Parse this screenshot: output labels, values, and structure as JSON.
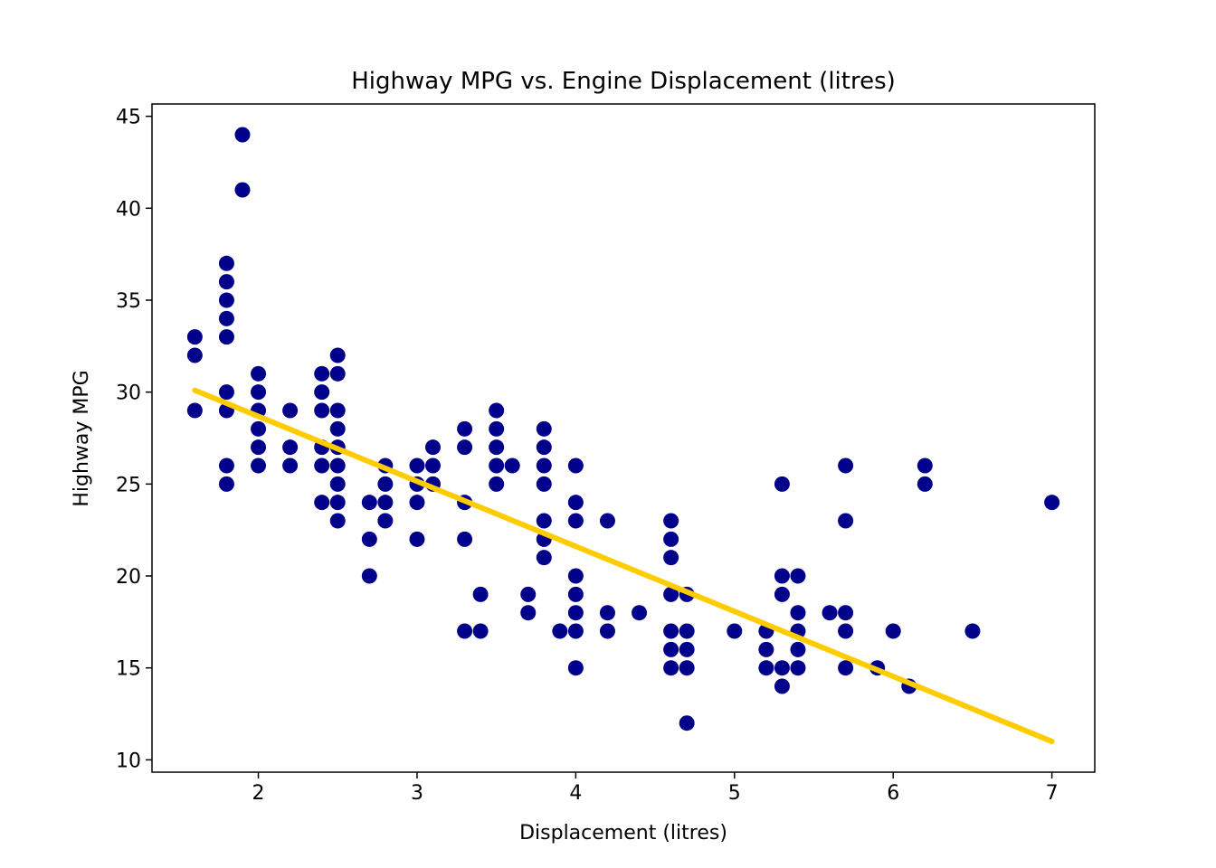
{
  "chart_data": {
    "type": "scatter",
    "title": "Highway MPG vs. Engine Displacement (litres)",
    "xlabel": "Displacement (litres)",
    "ylabel": "Highway MPG",
    "xlim": [
      1.33,
      7.27
    ],
    "ylim": [
      9.33,
      45.67
    ],
    "xticks": [
      2,
      3,
      4,
      5,
      6,
      7
    ],
    "yticks": [
      10,
      15,
      20,
      25,
      30,
      35,
      40,
      45
    ],
    "grid": false,
    "colors": {
      "points": "#00008b",
      "fit_line": "#ffcc00"
    },
    "series": [
      {
        "kind": "points",
        "points": [
          [
            1.6,
            33
          ],
          [
            1.6,
            32
          ],
          [
            1.6,
            29
          ],
          [
            1.8,
            37
          ],
          [
            1.8,
            36
          ],
          [
            1.8,
            35
          ],
          [
            1.8,
            34
          ],
          [
            1.8,
            33
          ],
          [
            1.8,
            30
          ],
          [
            1.8,
            29
          ],
          [
            1.8,
            26
          ],
          [
            1.8,
            25
          ],
          [
            1.9,
            44
          ],
          [
            1.9,
            41
          ],
          [
            2.0,
            31
          ],
          [
            2.0,
            30
          ],
          [
            2.0,
            29
          ],
          [
            2.0,
            28
          ],
          [
            2.0,
            27
          ],
          [
            2.0,
            26
          ],
          [
            2.2,
            29
          ],
          [
            2.2,
            27
          ],
          [
            2.2,
            26
          ],
          [
            2.4,
            31
          ],
          [
            2.4,
            30
          ],
          [
            2.4,
            29
          ],
          [
            2.4,
            27
          ],
          [
            2.4,
            26
          ],
          [
            2.4,
            24
          ],
          [
            2.5,
            32
          ],
          [
            2.5,
            31
          ],
          [
            2.5,
            29
          ],
          [
            2.5,
            28
          ],
          [
            2.5,
            27
          ],
          [
            2.5,
            26
          ],
          [
            2.5,
            25
          ],
          [
            2.5,
            24
          ],
          [
            2.5,
            23
          ],
          [
            2.7,
            24
          ],
          [
            2.7,
            22
          ],
          [
            2.7,
            20
          ],
          [
            2.8,
            26
          ],
          [
            2.8,
            25
          ],
          [
            2.8,
            24
          ],
          [
            2.8,
            23
          ],
          [
            3.0,
            26
          ],
          [
            3.0,
            25
          ],
          [
            3.0,
            24
          ],
          [
            3.0,
            22
          ],
          [
            3.1,
            27
          ],
          [
            3.1,
            26
          ],
          [
            3.1,
            25
          ],
          [
            3.3,
            28
          ],
          [
            3.3,
            27
          ],
          [
            3.3,
            24
          ],
          [
            3.3,
            22
          ],
          [
            3.3,
            17
          ],
          [
            3.4,
            19
          ],
          [
            3.4,
            17
          ],
          [
            3.5,
            29
          ],
          [
            3.5,
            28
          ],
          [
            3.5,
            27
          ],
          [
            3.5,
            26
          ],
          [
            3.5,
            25
          ],
          [
            3.6,
            26
          ],
          [
            3.7,
            19
          ],
          [
            3.7,
            18
          ],
          [
            3.8,
            28
          ],
          [
            3.8,
            27
          ],
          [
            3.8,
            26
          ],
          [
            3.8,
            25
          ],
          [
            3.8,
            23
          ],
          [
            3.8,
            22
          ],
          [
            3.8,
            21
          ],
          [
            3.9,
            17
          ],
          [
            4.0,
            26
          ],
          [
            4.0,
            24
          ],
          [
            4.0,
            23
          ],
          [
            4.0,
            20
          ],
          [
            4.0,
            19
          ],
          [
            4.0,
            18
          ],
          [
            4.0,
            17
          ],
          [
            4.0,
            15
          ],
          [
            4.2,
            23
          ],
          [
            4.2,
            18
          ],
          [
            4.2,
            17
          ],
          [
            4.4,
            18
          ],
          [
            4.6,
            23
          ],
          [
            4.6,
            22
          ],
          [
            4.6,
            21
          ],
          [
            4.6,
            19
          ],
          [
            4.6,
            17
          ],
          [
            4.6,
            16
          ],
          [
            4.6,
            15
          ],
          [
            4.7,
            19
          ],
          [
            4.7,
            17
          ],
          [
            4.7,
            16
          ],
          [
            4.7,
            15
          ],
          [
            4.7,
            12
          ],
          [
            5.0,
            17
          ],
          [
            5.2,
            17
          ],
          [
            5.2,
            16
          ],
          [
            5.2,
            15
          ],
          [
            5.3,
            25
          ],
          [
            5.3,
            20
          ],
          [
            5.3,
            19
          ],
          [
            5.3,
            15
          ],
          [
            5.3,
            14
          ],
          [
            5.4,
            20
          ],
          [
            5.4,
            18
          ],
          [
            5.4,
            17
          ],
          [
            5.4,
            16
          ],
          [
            5.4,
            15
          ],
          [
            5.6,
            18
          ],
          [
            5.7,
            26
          ],
          [
            5.7,
            23
          ],
          [
            5.7,
            18
          ],
          [
            5.7,
            17
          ],
          [
            5.7,
            15
          ],
          [
            5.9,
            15
          ],
          [
            6.0,
            17
          ],
          [
            6.1,
            14
          ],
          [
            6.2,
            26
          ],
          [
            6.2,
            25
          ],
          [
            6.5,
            17
          ],
          [
            7.0,
            24
          ]
        ]
      },
      {
        "kind": "fit_line",
        "points": [
          [
            1.6,
            30.1
          ],
          [
            7.0,
            11.0
          ]
        ]
      }
    ]
  }
}
